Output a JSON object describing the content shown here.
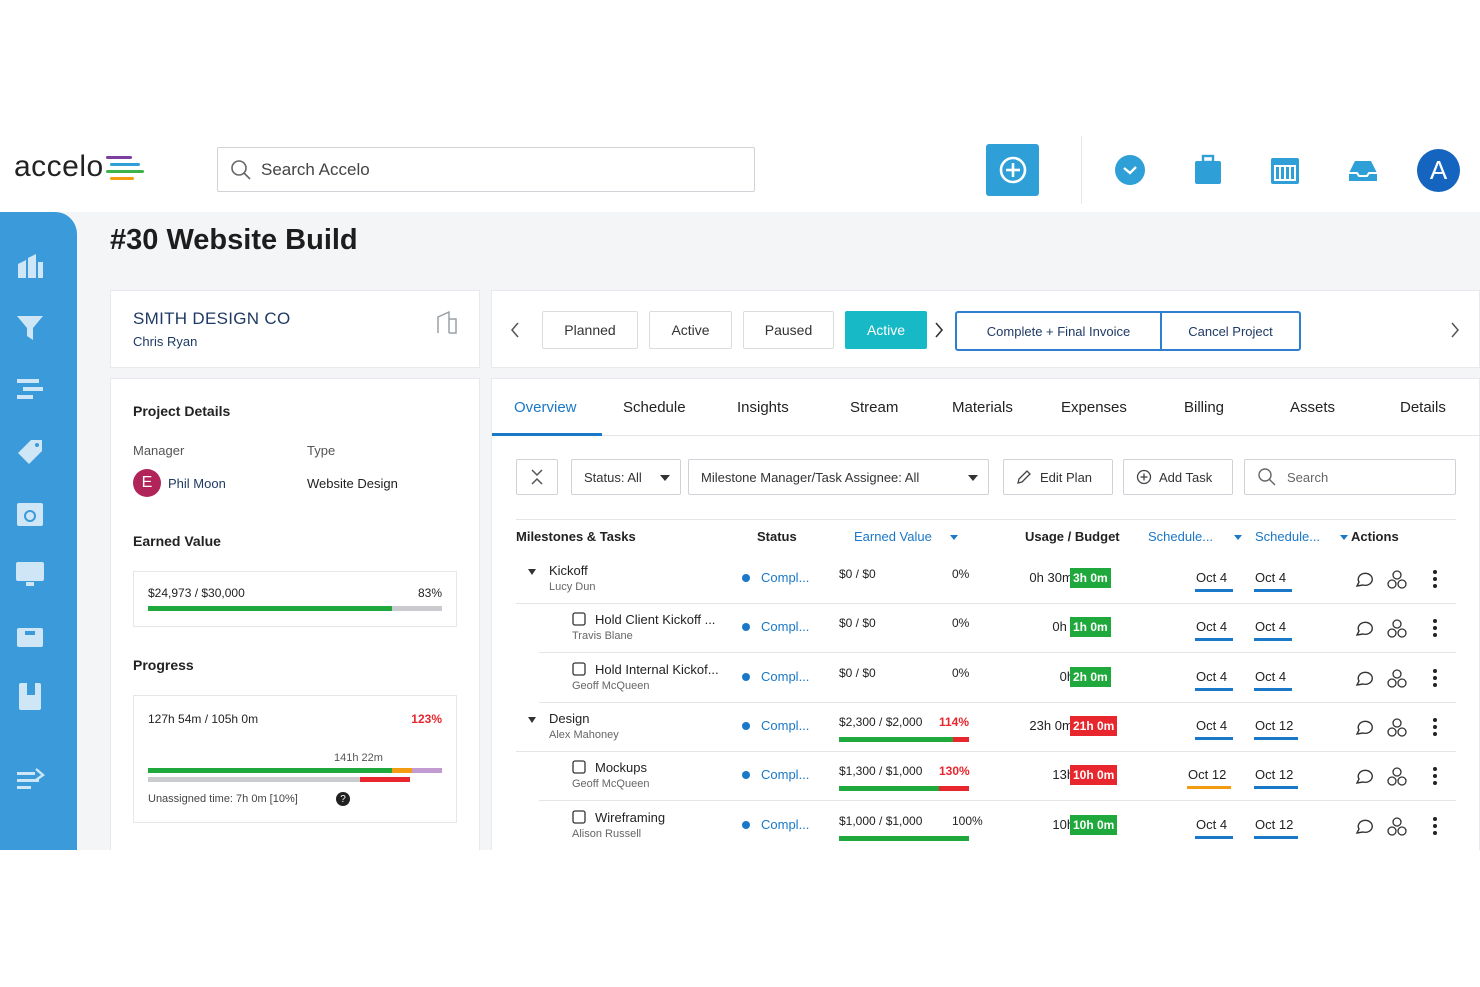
{
  "header": {
    "logo_text": "accelo",
    "search_placeholder": "Search Accelo",
    "avatar_letter": "A",
    "brand_color": "#3b9ad9",
    "icons": [
      "plus-icon",
      "clock-icon",
      "briefcase-icon",
      "calendar-icon",
      "inbox-icon"
    ]
  },
  "sidebar": {
    "icons": [
      "dashboard-icon",
      "funnel-icon",
      "timeline-icon",
      "tag-icon",
      "calendar-refresh-icon",
      "monitor-icon",
      "folder-icon",
      "book-icon",
      "expand-icon"
    ]
  },
  "page": {
    "title": "#30 Website Build"
  },
  "client": {
    "name": "SMITH DESIGN CO",
    "contact": "Chris Ryan"
  },
  "project_details": {
    "title": "Project Details",
    "manager_label": "Manager",
    "manager_initial": "E",
    "manager_name": "Phil Moon",
    "type_label": "Type",
    "type_value": "Website Design",
    "earned_value_title": "Earned Value",
    "earned_value_text": "$24,973 / $30,000",
    "earned_value_pct_text": "83%",
    "earned_value_pct": 0.83,
    "progress_title": "Progress",
    "progress_text": "127h 54m / 105h 0m",
    "progress_pct_text": "123%",
    "progress_marker": "141h 22m",
    "unassigned_text": "Unassigned time: 7h 0m [10%]"
  },
  "stepper": {
    "steps": [
      "Planned",
      "Active",
      "Paused",
      "Active"
    ],
    "active_index": 3,
    "actions": [
      "Complete + Final Invoice",
      "Cancel Project"
    ]
  },
  "tabs": [
    "Overview",
    "Schedule",
    "Insights",
    "Stream",
    "Materials",
    "Expenses",
    "Billing",
    "Assets",
    "Details"
  ],
  "toolbar": {
    "status_filter": "Status: All",
    "assignee_filter": "Milestone Manager/Task Assignee: All",
    "edit_plan": "Edit Plan",
    "add_task": "Add Task",
    "search_placeholder": "Search"
  },
  "table": {
    "headers": {
      "tasks": "Milestones & Tasks",
      "status": "Status",
      "earned": "Earned Value",
      "usage": "Usage / Budget",
      "sched_start": "Schedule...",
      "sched_end": "Schedule...",
      "actions": "Actions"
    },
    "rows": [
      {
        "name": "Kickoff",
        "owner": "Lucy Dun",
        "level": 0,
        "status": "Compl...",
        "earned": "$0 / $0",
        "earned_pct": "0%",
        "usage": "0h 30m /",
        "budget": "3h 0m",
        "budget_color": "#1fa83b",
        "start": "Oct 4",
        "end": "Oct 4"
      },
      {
        "name": "Hold Client Kickoff ...",
        "owner": "Travis Blane",
        "level": 1,
        "status": "Compl...",
        "earned": "$0 / $0",
        "earned_pct": "0%",
        "usage": "0h 30m /",
        "budget": "1h 0m",
        "budget_color": "#1fa83b",
        "start": "Oct 4",
        "end": "Oct 4"
      },
      {
        "name": "Hold Internal Kickof...",
        "owner": "Geoff McQueen",
        "level": 1,
        "status": "Compl...",
        "earned": "$0 / $0",
        "earned_pct": "0%",
        "usage": "0h 0m /",
        "budget": "2h 0m",
        "budget_color": "#1fa83b",
        "start": "Oct 4",
        "end": "Oct 4"
      },
      {
        "name": "Design",
        "owner": "Alex Mahoney",
        "level": 0,
        "status": "Compl...",
        "earned": "$2,300 / $2,000",
        "earned_pct": "114%",
        "usage": "23h 0m /",
        "budget": "21h 0m",
        "budget_color": "#e8262d",
        "start": "Oct 4",
        "end": "Oct 12"
      },
      {
        "name": "Mockups",
        "owner": "Geoff McQueen",
        "level": 1,
        "status": "Compl...",
        "earned": "$1,300 / $1,000",
        "earned_pct": "130%",
        "usage": "13h 0m /",
        "budget": "10h 0m",
        "budget_color": "#e8262d",
        "start": "Oct 12",
        "end": "Oct 12"
      },
      {
        "name": "Wireframing",
        "owner": "Alison Russell",
        "level": 1,
        "status": "Compl...",
        "earned": "$1,000 / $1,000",
        "earned_pct": "100%",
        "usage": "10h 0m /",
        "budget": "10h 0m",
        "budget_color": "#1fa83b",
        "start": "Oct 4",
        "end": "Oct 12"
      }
    ]
  }
}
